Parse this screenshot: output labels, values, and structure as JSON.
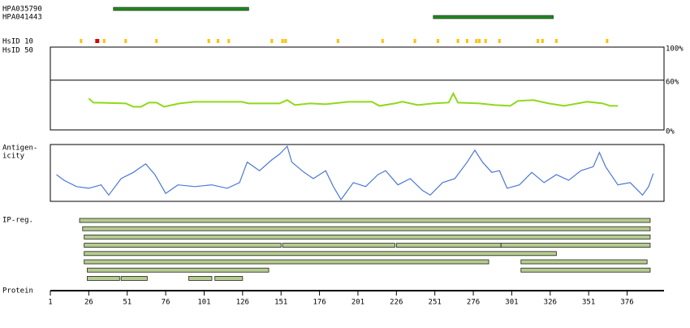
{
  "protein_axis": {
    "label": "Protein",
    "lim": [
      1,
      400
    ],
    "ticks": [
      1,
      26,
      51,
      76,
      101,
      126,
      151,
      176,
      201,
      226,
      251,
      276,
      301,
      326,
      351,
      376
    ]
  },
  "antigens": [
    {
      "label": "HPA035790",
      "start": 42,
      "end": 130,
      "color": "#228b22"
    },
    {
      "label": "HPA041443",
      "start": 250,
      "end": 328,
      "color": "#228b22"
    }
  ],
  "hsid": {
    "labels": [
      "HsID 10",
      "HsID 50"
    ],
    "positions": [
      21,
      31,
      32,
      36,
      50,
      70,
      104,
      110,
      117,
      145,
      152,
      154,
      188,
      217,
      238,
      253,
      266,
      272,
      278,
      280,
      284,
      293,
      318,
      321,
      330,
      363
    ],
    "colors": [
      "#ffc000",
      "#dd0000",
      "#dd0000",
      "#ffc000",
      "#ffc000",
      "#ffc000",
      "#ffc000",
      "#ffc000",
      "#ffc000",
      "#ffc000",
      "#ffc000",
      "#ffc000",
      "#ffc000",
      "#ffc000",
      "#ffc000",
      "#ffc000",
      "#ffc000",
      "#ffc000",
      "#ffc000",
      "#ffc000",
      "#ffc000",
      "#ffc000",
      "#ffc000",
      "#ffc000",
      "#ffc000",
      "#ffc000"
    ]
  },
  "identity": {
    "ylim": [
      0,
      100
    ],
    "yticks": [
      {
        "value": 100,
        "label": "100%"
      },
      {
        "value": 60,
        "label": "60%"
      },
      {
        "value": 0,
        "label": "0%"
      }
    ],
    "color": "#8fd91a",
    "x": [
      26,
      29,
      50,
      55,
      60,
      65,
      70,
      75,
      85,
      95,
      125,
      130,
      150,
      155,
      160,
      170,
      180,
      195,
      210,
      215,
      225,
      230,
      240,
      250,
      260,
      263,
      266,
      280,
      290,
      300,
      305,
      315,
      325,
      335,
      350,
      360,
      365,
      370
    ],
    "values": [
      38,
      33,
      32,
      28,
      28,
      33,
      33,
      28,
      32,
      34,
      34,
      32,
      32,
      36,
      30,
      32,
      31,
      34,
      34,
      29,
      32,
      34,
      30,
      32,
      33,
      44,
      33,
      32,
      30,
      29,
      35,
      36,
      32,
      29,
      34,
      32,
      29,
      29
    ]
  },
  "antigenicity": {
    "label": [
      "Antigen-",
      "icity"
    ],
    "ylim": [
      0,
      100
    ],
    "color": "#4a78d8",
    "x": [
      5,
      10,
      18,
      26,
      34,
      39,
      47,
      55,
      63,
      69,
      76,
      84,
      95,
      106,
      116,
      124,
      129,
      137,
      145,
      150,
      155,
      158,
      166,
      172,
      180,
      185,
      190,
      198,
      206,
      214,
      219,
      227,
      235,
      243,
      248,
      256,
      264,
      272,
      277,
      282,
      288,
      293,
      298,
      306,
      314,
      322,
      330,
      338,
      346,
      354,
      358,
      362,
      370,
      378,
      386,
      390,
      393
    ],
    "values": [
      47,
      37,
      26,
      23,
      29,
      11,
      40,
      51,
      66,
      47,
      14,
      29,
      26,
      29,
      23,
      33,
      69,
      54,
      73,
      83,
      97,
      69,
      51,
      40,
      54,
      26,
      3,
      33,
      26,
      47,
      54,
      29,
      40,
      19,
      11,
      33,
      40,
      69,
      90,
      69,
      51,
      54,
      23,
      29,
      51,
      33,
      47,
      37,
      54,
      61,
      86,
      61,
      29,
      33,
      11,
      26,
      49
    ]
  },
  "ip_regions": {
    "label": "IP-reg.",
    "color": "#b5cc8e",
    "rows": [
      [
        [
          20,
          391
        ]
      ],
      [
        [
          22,
          391
        ]
      ],
      [
        [
          23,
          391
        ]
      ],
      [
        [
          23,
          151
        ],
        [
          152,
          225
        ],
        [
          226,
          294
        ],
        [
          294,
          391
        ]
      ],
      [
        [
          23,
          330
        ]
      ],
      [
        [
          23,
          286
        ],
        [
          307,
          389
        ]
      ],
      [
        [
          25,
          143
        ],
        [
          307,
          391
        ]
      ],
      [
        [
          25,
          46
        ],
        [
          47,
          64
        ],
        [
          91,
          106
        ],
        [
          108,
          126
        ]
      ]
    ]
  }
}
